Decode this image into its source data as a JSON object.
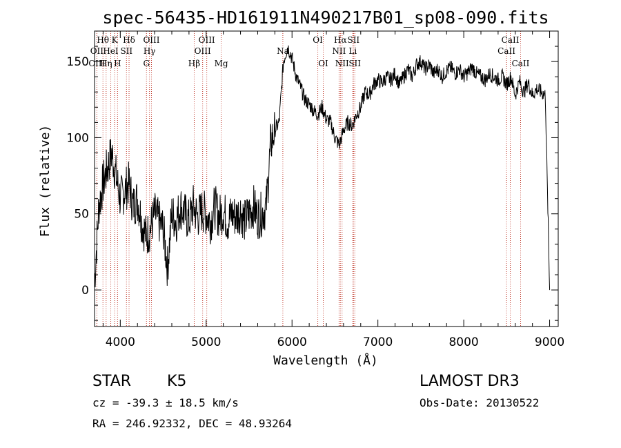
{
  "chart_data": {
    "type": "line",
    "title": "spec-56435-HD161911N490217B01_sp08-090.fits",
    "xlabel": "Wavelength (Å)",
    "ylabel": "Flux (relative)",
    "xlim": [
      3700,
      9100
    ],
    "ylim": [
      -24,
      170
    ],
    "xticks": [
      4000,
      5000,
      6000,
      7000,
      8000,
      9000
    ],
    "yticks": [
      0,
      50,
      100,
      150
    ],
    "grid": false,
    "series": [
      {
        "name": "flux",
        "x": [
          3700,
          3750,
          3800,
          3850,
          3900,
          3950,
          4000,
          4050,
          4100,
          4150,
          4200,
          4250,
          4300,
          4350,
          4400,
          4450,
          4500,
          4550,
          4600,
          4650,
          4700,
          4750,
          4800,
          4850,
          4900,
          4950,
          5000,
          5050,
          5100,
          5150,
          5200,
          5250,
          5300,
          5350,
          5400,
          5450,
          5500,
          5550,
          5600,
          5650,
          5700,
          5750,
          5800,
          5850,
          5900,
          5950,
          6000,
          6050,
          6100,
          6150,
          6200,
          6250,
          6300,
          6350,
          6400,
          6450,
          6500,
          6550,
          6600,
          6650,
          6700,
          6750,
          6800,
          6850,
          6900,
          6950,
          7000,
          7050,
          7100,
          7150,
          7200,
          7250,
          7300,
          7350,
          7400,
          7450,
          7500,
          7550,
          7600,
          7650,
          7700,
          7750,
          7800,
          7850,
          7900,
          7950,
          8000,
          8050,
          8100,
          8150,
          8200,
          8250,
          8300,
          8350,
          8400,
          8450,
          8500,
          8550,
          8600,
          8650,
          8700,
          8750,
          8800,
          8850,
          8900,
          8950,
          9000
        ],
        "values": [
          5,
          55,
          70,
          80,
          90,
          75,
          60,
          65,
          70,
          55,
          60,
          45,
          35,
          40,
          50,
          45,
          40,
          15,
          50,
          45,
          55,
          50,
          45,
          55,
          48,
          52,
          50,
          45,
          55,
          48,
          52,
          45,
          50,
          48,
          52,
          45,
          50,
          55,
          48,
          50,
          55,
          95,
          105,
          110,
          150,
          160,
          152,
          140,
          133,
          125,
          122,
          118,
          115,
          120,
          112,
          110,
          100,
          95,
          105,
          110,
          108,
          115,
          120,
          130,
          128,
          135,
          138,
          136,
          140,
          138,
          142,
          135,
          140,
          145,
          140,
          148,
          150,
          145,
          148,
          142,
          145,
          140,
          144,
          146,
          142,
          145,
          140,
          143,
          146,
          142,
          140,
          138,
          142,
          140,
          138,
          140,
          135,
          140,
          128,
          137,
          130,
          136,
          128,
          132,
          130,
          128,
          0
        ]
      }
    ],
    "line_labels": [
      {
        "text": "Hθ",
        "wavelength": 3798,
        "row": 1
      },
      {
        "text": "OII",
        "wavelength": 3727,
        "row": 2
      },
      {
        "text": "OIII",
        "wavelength": 3727,
        "row": 3
      },
      {
        "text": "K",
        "wavelength": 3934,
        "row": 1
      },
      {
        "text": "HeI",
        "wavelength": 3889,
        "row": 2
      },
      {
        "text": "Hη",
        "wavelength": 3835,
        "row": 3
      },
      {
        "text": "Hδ",
        "wavelength": 4102,
        "row": 1
      },
      {
        "text": "SII",
        "wavelength": 4072,
        "row": 2
      },
      {
        "text": "H",
        "wavelength": 3968,
        "row": 3
      },
      {
        "text": "OIII",
        "wavelength": 4363,
        "row": 1
      },
      {
        "text": "Hγ",
        "wavelength": 4340,
        "row": 2
      },
      {
        "text": "G",
        "wavelength": 4305,
        "row": 3
      },
      {
        "text": "Hβ",
        "wavelength": 4861,
        "row": 3
      },
      {
        "text": "OIII",
        "wavelength": 5007,
        "row": 1
      },
      {
        "text": "OIII",
        "wavelength": 4959,
        "row": 2
      },
      {
        "text": "Mg",
        "wavelength": 5175,
        "row": 3
      },
      {
        "text": "Na",
        "wavelength": 5893,
        "row": 2
      },
      {
        "text": "OI",
        "wavelength": 6300,
        "row": 1
      },
      {
        "text": "OI",
        "wavelength": 6364,
        "row": 3
      },
      {
        "text": "Hα",
        "wavelength": 6563,
        "row": 1
      },
      {
        "text": "SII",
        "wavelength": 6716,
        "row": 1
      },
      {
        "text": "NII",
        "wavelength": 6548,
        "row": 2
      },
      {
        "text": "Li",
        "wavelength": 6708,
        "row": 2
      },
      {
        "text": "NII",
        "wavelength": 6583,
        "row": 3
      },
      {
        "text": "SII",
        "wavelength": 6731,
        "row": 3
      },
      {
        "text": "CaII",
        "wavelength": 8542,
        "row": 1
      },
      {
        "text": "CaII",
        "wavelength": 8498,
        "row": 2
      },
      {
        "text": "CaII",
        "wavelength": 8662,
        "row": 3
      }
    ],
    "line_markers": [
      3727,
      3798,
      3835,
      3889,
      3934,
      3968,
      4072,
      4102,
      4305,
      4340,
      4363,
      4861,
      4959,
      5007,
      5175,
      5893,
      6300,
      6364,
      6548,
      6563,
      6583,
      6708,
      6716,
      6731,
      8498,
      8542,
      8662
    ]
  },
  "info": {
    "object_class": "STAR",
    "subclass": "K5",
    "survey": "LAMOST DR3",
    "redshift": "cz = -39.3 ± 18.5 km/s",
    "obs_date": "Obs-Date: 20130522",
    "coords": "RA = 246.92332, DEC =  48.93264"
  }
}
